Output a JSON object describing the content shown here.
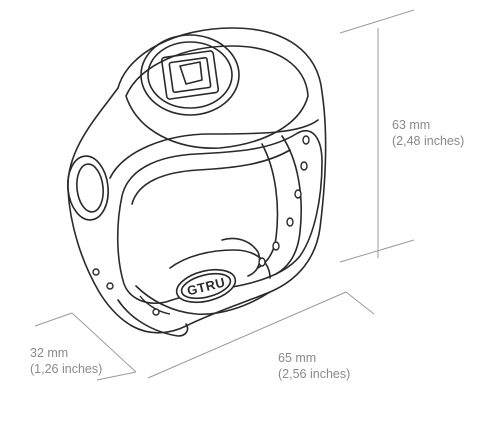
{
  "dimensions": {
    "height": {
      "metric": "63 mm",
      "imperial": "(2,48 inches)"
    },
    "depth": {
      "metric": "32 mm",
      "imperial": "(1,26 inches)"
    },
    "width": {
      "metric": "65 mm",
      "imperial": "(2,56 inches)"
    }
  },
  "colors": {
    "line": "#2a2a2a",
    "dimension": "#9a9a9a",
    "text": "#8a8a8a"
  },
  "buckle_logo": "GTRU"
}
